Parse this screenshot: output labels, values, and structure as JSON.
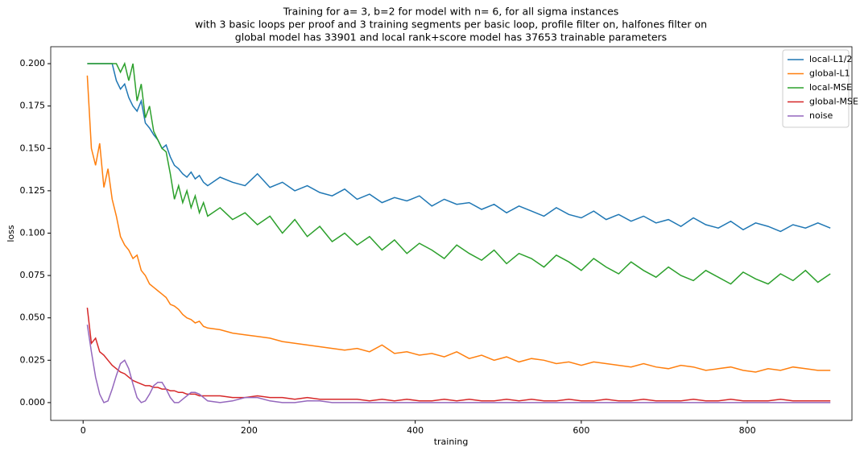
{
  "chart_data": {
    "type": "line",
    "title": [
      "Training for a= 3, b=2 for model with n= 6, for all sigma instances",
      "with 3 basic loops per proof and 3 training segments per basic loop, profile filter on, halfones filter on",
      "global model has 33901 and local rank+score model has 37653 trainable parameters"
    ],
    "x_label": "training",
    "y_label": "loss",
    "x": [
      5,
      10,
      15,
      20,
      25,
      30,
      35,
      40,
      45,
      50,
      55,
      60,
      65,
      70,
      75,
      80,
      85,
      90,
      95,
      100,
      105,
      110,
      115,
      120,
      125,
      130,
      135,
      140,
      145,
      150,
      165,
      180,
      195,
      210,
      225,
      240,
      255,
      270,
      285,
      300,
      315,
      330,
      345,
      360,
      375,
      390,
      405,
      420,
      435,
      450,
      465,
      480,
      495,
      510,
      525,
      540,
      555,
      570,
      585,
      600,
      615,
      630,
      645,
      660,
      675,
      690,
      705,
      720,
      735,
      750,
      765,
      780,
      795,
      810,
      825,
      840,
      855,
      870,
      885,
      900
    ],
    "series": [
      {
        "name": "local-L1/2",
        "color": "#1f77b4",
        "values": [
          0.2,
          0.2,
          0.2,
          0.2,
          0.2,
          0.2,
          0.2,
          0.19,
          0.185,
          0.188,
          0.18,
          0.175,
          0.172,
          0.178,
          0.165,
          0.162,
          0.158,
          0.155,
          0.15,
          0.152,
          0.145,
          0.14,
          0.138,
          0.135,
          0.133,
          0.136,
          0.132,
          0.134,
          0.13,
          0.128,
          0.133,
          0.13,
          0.128,
          0.135,
          0.127,
          0.13,
          0.125,
          0.128,
          0.124,
          0.122,
          0.126,
          0.12,
          0.123,
          0.118,
          0.121,
          0.119,
          0.122,
          0.116,
          0.12,
          0.117,
          0.118,
          0.114,
          0.117,
          0.112,
          0.116,
          0.113,
          0.11,
          0.115,
          0.111,
          0.109,
          0.113,
          0.108,
          0.111,
          0.107,
          0.11,
          0.106,
          0.108,
          0.104,
          0.109,
          0.105,
          0.103,
          0.107,
          0.102,
          0.106,
          0.104,
          0.101,
          0.105,
          0.103,
          0.106,
          0.103
        ]
      },
      {
        "name": "global-L1",
        "color": "#ff7f0e",
        "values": [
          0.193,
          0.15,
          0.14,
          0.153,
          0.127,
          0.138,
          0.12,
          0.11,
          0.098,
          0.093,
          0.09,
          0.085,
          0.087,
          0.078,
          0.075,
          0.07,
          0.068,
          0.066,
          0.064,
          0.062,
          0.058,
          0.057,
          0.055,
          0.052,
          0.05,
          0.049,
          0.047,
          0.048,
          0.045,
          0.044,
          0.043,
          0.041,
          0.04,
          0.039,
          0.038,
          0.036,
          0.035,
          0.034,
          0.033,
          0.032,
          0.031,
          0.032,
          0.03,
          0.034,
          0.029,
          0.03,
          0.028,
          0.029,
          0.027,
          0.03,
          0.026,
          0.028,
          0.025,
          0.027,
          0.024,
          0.026,
          0.025,
          0.023,
          0.024,
          0.022,
          0.024,
          0.023,
          0.022,
          0.021,
          0.023,
          0.021,
          0.02,
          0.022,
          0.021,
          0.019,
          0.02,
          0.021,
          0.019,
          0.018,
          0.02,
          0.019,
          0.021,
          0.02,
          0.019,
          0.019
        ]
      },
      {
        "name": "local-MSE",
        "color": "#2ca02c",
        "values": [
          0.2,
          0.2,
          0.2,
          0.2,
          0.2,
          0.2,
          0.2,
          0.2,
          0.195,
          0.2,
          0.19,
          0.2,
          0.178,
          0.188,
          0.168,
          0.175,
          0.16,
          0.155,
          0.15,
          0.148,
          0.135,
          0.12,
          0.128,
          0.118,
          0.125,
          0.115,
          0.122,
          0.112,
          0.118,
          0.11,
          0.115,
          0.108,
          0.112,
          0.105,
          0.11,
          0.1,
          0.108,
          0.098,
          0.104,
          0.095,
          0.1,
          0.093,
          0.098,
          0.09,
          0.096,
          0.088,
          0.094,
          0.09,
          0.085,
          0.093,
          0.088,
          0.084,
          0.09,
          0.082,
          0.088,
          0.085,
          0.08,
          0.087,
          0.083,
          0.078,
          0.085,
          0.08,
          0.076,
          0.083,
          0.078,
          0.074,
          0.08,
          0.075,
          0.072,
          0.078,
          0.074,
          0.07,
          0.077,
          0.073,
          0.07,
          0.076,
          0.072,
          0.078,
          0.071,
          0.076
        ]
      },
      {
        "name": "global-MSE",
        "color": "#d62728",
        "values": [
          0.056,
          0.035,
          0.038,
          0.03,
          0.028,
          0.025,
          0.022,
          0.02,
          0.018,
          0.017,
          0.015,
          0.013,
          0.012,
          0.011,
          0.01,
          0.01,
          0.009,
          0.009,
          0.008,
          0.008,
          0.007,
          0.007,
          0.006,
          0.006,
          0.005,
          0.005,
          0.005,
          0.004,
          0.004,
          0.004,
          0.004,
          0.003,
          0.003,
          0.004,
          0.003,
          0.003,
          0.002,
          0.003,
          0.002,
          0.002,
          0.002,
          0.002,
          0.001,
          0.002,
          0.001,
          0.002,
          0.001,
          0.001,
          0.002,
          0.001,
          0.002,
          0.001,
          0.001,
          0.002,
          0.001,
          0.002,
          0.001,
          0.001,
          0.002,
          0.001,
          0.001,
          0.002,
          0.001,
          0.001,
          0.002,
          0.001,
          0.001,
          0.001,
          0.002,
          0.001,
          0.001,
          0.002,
          0.001,
          0.001,
          0.001,
          0.002,
          0.001,
          0.001,
          0.001,
          0.001
        ]
      },
      {
        "name": "noise",
        "color": "#9467bd",
        "values": [
          0.046,
          0.03,
          0.015,
          0.005,
          0,
          0.001,
          0.008,
          0.016,
          0.023,
          0.025,
          0.02,
          0.011,
          0.003,
          0,
          0.001,
          0.005,
          0.01,
          0.012,
          0.012,
          0.008,
          0.003,
          0,
          0,
          0.002,
          0.004,
          0.006,
          0.006,
          0.005,
          0.003,
          0.001,
          0,
          0.001,
          0.003,
          0.003,
          0.001,
          0,
          0,
          0.001,
          0.001,
          0,
          0,
          0,
          0,
          0,
          0,
          0,
          0,
          0,
          0,
          0,
          0,
          0,
          0,
          0,
          0,
          0,
          0,
          0,
          0,
          0,
          0,
          0,
          0,
          0,
          0,
          0,
          0,
          0,
          0,
          0,
          0,
          0,
          0,
          0,
          0,
          0,
          0,
          0,
          0,
          0
        ]
      }
    ],
    "xlim": [
      -39,
      926
    ],
    "ylim": [
      -0.0105,
      0.21
    ],
    "xticks": [
      0,
      200,
      400,
      600,
      800
    ],
    "yticks": [
      {
        "value": 0,
        "label": "0.000"
      },
      {
        "value": 0.025,
        "label": "0.025"
      },
      {
        "value": 0.05,
        "label": "0.050"
      },
      {
        "value": 0.075,
        "label": "0.075"
      },
      {
        "value": 0.1,
        "label": "0.100"
      },
      {
        "value": 0.125,
        "label": "0.125"
      },
      {
        "value": 0.15,
        "label": "0.150"
      },
      {
        "value": 0.175,
        "label": "0.175"
      },
      {
        "value": 0.2,
        "label": "0.200"
      }
    ],
    "grid": false,
    "legend": "upper right"
  }
}
